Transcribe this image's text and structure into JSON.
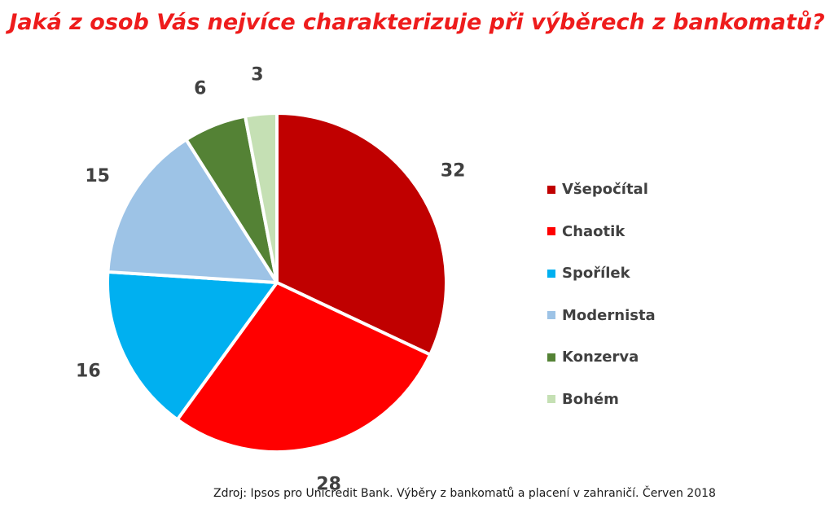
{
  "title": "Jaká z osob Vás nejvíce charakterizuje při výběrech z bankomatů?",
  "source": "Zdroj: Ipsos pro Unicredit Bank. Výběry z bankomatů a placení v zahraničí. Červen 2018",
  "chart_data": {
    "type": "pie",
    "title": "Jaká z osob Vás nejvíce charakterizuje při výběrech z bankomatů?",
    "legend_position": "right",
    "slices": [
      {
        "label": "Všepočítal",
        "value": 32,
        "color": "#c00000"
      },
      {
        "label": "Chaotik",
        "value": 28,
        "color": "#ff0000"
      },
      {
        "label": "Spořílek",
        "value": 16,
        "color": "#00b0f0"
      },
      {
        "label": "Modernista",
        "value": 15,
        "color": "#9dc3e6"
      },
      {
        "label": "Konzerva",
        "value": 6,
        "color": "#548235"
      },
      {
        "label": "Bohém",
        "value": 3,
        "color": "#c5e0b4"
      }
    ]
  }
}
